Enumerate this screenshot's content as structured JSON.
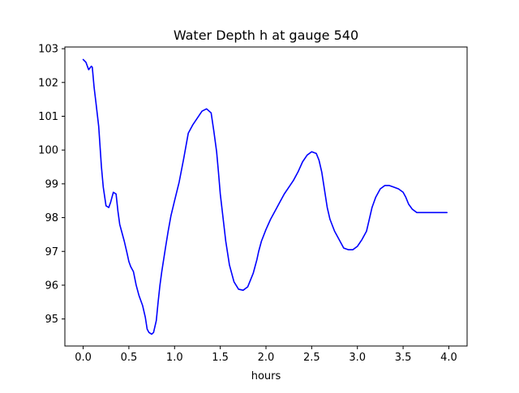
{
  "chart_data": {
    "type": "line",
    "title": "Water Depth h at gauge 540",
    "xlabel": "hours",
    "ylabel": "",
    "xlim": [
      -0.2,
      4.2
    ],
    "ylim": [
      94.2,
      103.05
    ],
    "grid": false,
    "xticks": [
      0.0,
      0.5,
      1.0,
      1.5,
      2.0,
      2.5,
      3.0,
      3.5,
      4.0
    ],
    "xtick_labels": [
      "0.0",
      "0.5",
      "1.0",
      "1.5",
      "2.0",
      "2.5",
      "3.0",
      "3.5",
      "4.0"
    ],
    "yticks": [
      95,
      96,
      97,
      98,
      99,
      100,
      101,
      102,
      103
    ],
    "ytick_labels": [
      "95",
      "96",
      "97",
      "98",
      "99",
      "100",
      "101",
      "102",
      "103"
    ],
    "series": [
      {
        "color": "#0000ff",
        "x": [
          0.0,
          0.03,
          0.06,
          0.09,
          0.1,
          0.12,
          0.14,
          0.17,
          0.2,
          0.22,
          0.25,
          0.28,
          0.3,
          0.33,
          0.36,
          0.38,
          0.4,
          0.42,
          0.45,
          0.48,
          0.5,
          0.52,
          0.55,
          0.58,
          0.61,
          0.63,
          0.65,
          0.68,
          0.7,
          0.72,
          0.75,
          0.77,
          0.8,
          0.82,
          0.84,
          0.86,
          0.88,
          0.9,
          0.93,
          0.96,
          1.0,
          1.05,
          1.1,
          1.15,
          1.2,
          1.25,
          1.3,
          1.35,
          1.4,
          1.43,
          1.46,
          1.48,
          1.5,
          1.53,
          1.56,
          1.6,
          1.65,
          1.7,
          1.75,
          1.8,
          1.83,
          1.86,
          1.88,
          1.9,
          1.92,
          1.95,
          2.0,
          2.05,
          2.1,
          2.15,
          2.2,
          2.25,
          2.3,
          2.35,
          2.4,
          2.45,
          2.5,
          2.55,
          2.58,
          2.61,
          2.63,
          2.65,
          2.67,
          2.7,
          2.75,
          2.8,
          2.85,
          2.9,
          2.95,
          3.0,
          3.05,
          3.1,
          3.13,
          3.16,
          3.2,
          3.25,
          3.3,
          3.35,
          3.4,
          3.45,
          3.5,
          3.53,
          3.56,
          3.6,
          3.65,
          3.7,
          3.75,
          3.8,
          3.85,
          3.9,
          3.95,
          3.98
        ],
        "y": [
          102.68,
          102.6,
          102.38,
          102.48,
          102.45,
          101.85,
          101.4,
          100.7,
          99.5,
          98.9,
          98.35,
          98.3,
          98.45,
          98.75,
          98.7,
          98.2,
          97.8,
          97.6,
          97.3,
          96.95,
          96.7,
          96.55,
          96.4,
          96.0,
          95.7,
          95.55,
          95.4,
          95.05,
          94.7,
          94.6,
          94.55,
          94.6,
          94.95,
          95.5,
          96.0,
          96.4,
          96.75,
          97.1,
          97.6,
          98.05,
          98.5,
          99.05,
          99.75,
          100.5,
          100.75,
          100.95,
          101.15,
          101.22,
          101.1,
          100.55,
          99.95,
          99.35,
          98.7,
          98.0,
          97.3,
          96.6,
          96.1,
          95.88,
          95.85,
          95.95,
          96.15,
          96.35,
          96.55,
          96.75,
          97.0,
          97.3,
          97.65,
          97.95,
          98.2,
          98.45,
          98.7,
          98.9,
          99.1,
          99.35,
          99.65,
          99.85,
          99.95,
          99.9,
          99.7,
          99.35,
          99.0,
          98.65,
          98.3,
          97.95,
          97.6,
          97.35,
          97.1,
          97.05,
          97.05,
          97.15,
          97.35,
          97.6,
          97.95,
          98.3,
          98.6,
          98.85,
          98.95,
          98.95,
          98.9,
          98.85,
          98.75,
          98.6,
          98.4,
          98.25,
          98.15,
          98.15,
          98.15,
          98.15,
          98.15,
          98.15,
          98.15,
          98.15
        ]
      }
    ]
  }
}
